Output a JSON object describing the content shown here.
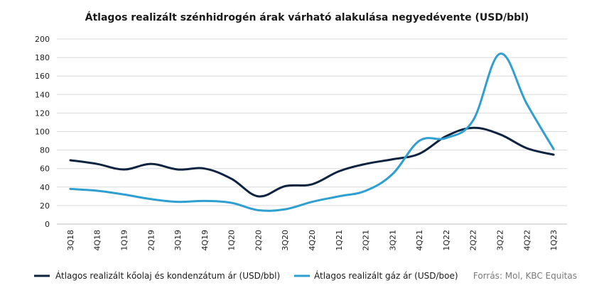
{
  "chart_data": {
    "type": "line",
    "title": "Átlagos realizált szénhidrogén árak várható alakulása negyedévente  (USD/bbl)",
    "categories": [
      "3Q18",
      "4Q18",
      "1Q19",
      "2Q19",
      "3Q19",
      "4Q19",
      "1Q20",
      "2Q20",
      "3Q20",
      "4Q20",
      "1Q21",
      "2Q21",
      "3Q21",
      "4Q21",
      "1Q22",
      "2Q22",
      "3Q22",
      "4Q22",
      "1Q23"
    ],
    "ylim": [
      0,
      200
    ],
    "yticks": [
      0,
      20,
      40,
      60,
      80,
      100,
      120,
      140,
      160,
      180,
      200
    ],
    "grid": true,
    "legend_position": "bottom",
    "series": [
      {
        "name": "Átlagos realizált kőolaj és kondenzátum ár (USD/bbl)",
        "color": "#0d2340",
        "values": [
          69,
          65,
          59,
          65,
          59,
          60,
          49,
          30,
          41,
          43,
          57,
          65,
          70,
          76,
          95,
          104,
          97,
          82,
          75
        ]
      },
      {
        "name": "Átlagos realizált gáz ár (USD/boe)",
        "color": "#2e9fd0",
        "values": [
          38,
          36,
          32,
          27,
          24,
          25,
          23,
          15,
          16,
          24,
          30,
          36,
          54,
          90,
          93,
          112,
          184,
          130,
          81
        ]
      }
    ],
    "source": "Forrás: Mol, KBC Equitas"
  }
}
